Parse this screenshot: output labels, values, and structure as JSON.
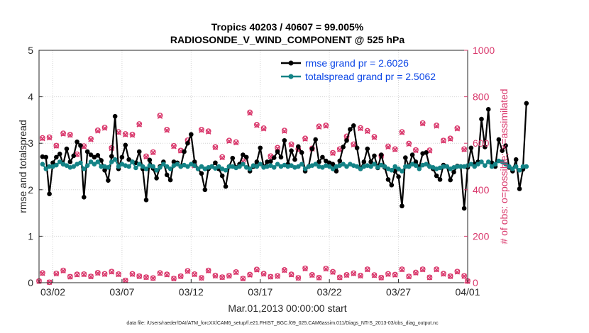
{
  "chart_data": {
    "type": "line",
    "title": "Tropics 40203 / 40607 = 99.005%",
    "subtitle": "RADIOSONDE_V_WIND_COMPONENT @ 525 hPa",
    "xlabel": "Mar.01,2013 00:00:00 start",
    "ylabel": "rmse and totalspread",
    "y2label": "# of obs: o=possible; ×=assimilated",
    "footer": "data file: /Users/raeder/DAI/ATM_forcXX/CAM6_setup/f.e21.FHIST_BGC.f09_025.CAM6assim.011/Diags_NTrS_2013-03/obs_diag_output.nc",
    "xlim": [
      0,
      31
    ],
    "ylim": [
      0,
      5
    ],
    "y2lim": [
      0,
      1000
    ],
    "xticks": [
      {
        "pos": 1,
        "label": "03/02"
      },
      {
        "pos": 6,
        "label": "03/07"
      },
      {
        "pos": 11,
        "label": "03/12"
      },
      {
        "pos": 16,
        "label": "03/17"
      },
      {
        "pos": 21,
        "label": "03/22"
      },
      {
        "pos": 26,
        "label": "03/27"
      },
      {
        "pos": 31,
        "label": "04/01"
      }
    ],
    "yticks": [
      {
        "value": 0,
        "label": "0"
      },
      {
        "value": 1,
        "label": "1"
      },
      {
        "value": 2,
        "label": "2"
      },
      {
        "value": 3,
        "label": "3"
      },
      {
        "value": 4,
        "label": "4"
      },
      {
        "value": 5,
        "label": "5"
      }
    ],
    "y2ticks": [
      {
        "value": 0,
        "label": "0"
      },
      {
        "value": 200,
        "label": "200"
      },
      {
        "value": 400,
        "label": "400"
      },
      {
        "value": 600,
        "label": "600"
      },
      {
        "value": 800,
        "label": "800"
      },
      {
        "value": 1000,
        "label": "1000"
      }
    ],
    "grid": true,
    "legend_position": "top-right",
    "series": [
      {
        "name": "rmse grand pr = 2.6026",
        "axis": "left",
        "color": "#000000",
        "x_start": 0.25,
        "x_step": 0.25,
        "values": [
          2.71,
          2.7,
          1.91,
          2.58,
          2.7,
          2.77,
          2.55,
          2.88,
          2.6,
          2.73,
          3.03,
          2.95,
          1.84,
          2.82,
          2.75,
          2.7,
          2.74,
          2.63,
          2.42,
          2.2,
          2.72,
          3.58,
          2.45,
          2.7,
          2.96,
          2.65,
          2.6,
          2.58,
          2.82,
          2.45,
          1.78,
          2.64,
          2.46,
          2.25,
          2.5,
          2.6,
          2.32,
          2.21,
          2.6,
          2.58,
          2.5,
          2.82,
          3.0,
          3.19,
          2.6,
          2.45,
          2.35,
          2.0,
          2.45,
          2.5,
          2.58,
          2.45,
          2.3,
          2.07,
          2.5,
          2.68,
          2.48,
          2.55,
          2.75,
          2.7,
          2.4,
          2.5,
          2.6,
          2.9,
          2.49,
          2.6,
          2.61,
          2.69,
          2.82,
          2.7,
          3.06,
          2.55,
          2.84,
          2.65,
          2.93,
          2.8,
          2.4,
          2.5,
          2.88,
          3.08,
          2.6,
          2.7,
          2.62,
          2.58,
          2.55,
          2.4,
          2.62,
          2.92,
          3.06,
          3.3,
          3.38,
          2.9,
          2.45,
          2.6,
          2.88,
          2.6,
          2.73,
          2.47,
          2.75,
          2.48,
          2.22,
          2.1,
          2.4,
          2.28,
          1.65,
          2.69,
          2.5,
          2.75,
          2.6,
          2.49,
          2.78,
          2.8,
          2.5,
          2.45,
          2.3,
          2.22,
          2.53,
          2.5,
          2.21,
          2.38,
          2.51,
          2.5,
          1.6,
          2.48,
          2.9,
          2.55,
          2.6,
          3.52,
          2.92,
          3.73,
          2.58,
          2.5,
          3.08,
          2.84,
          2.95,
          2.48,
          2.4,
          2.65,
          2.02,
          2.44,
          3.86
        ]
      },
      {
        "name": "totalspread grand pr = 2.5062",
        "axis": "left",
        "color": "#138386",
        "x_start": 0.25,
        "x_step": 0.25,
        "values": [
          2.55,
          2.45,
          2.5,
          2.5,
          2.53,
          2.6,
          2.55,
          2.52,
          2.48,
          2.5,
          2.55,
          2.58,
          2.45,
          2.52,
          2.6,
          2.55,
          2.6,
          2.5,
          2.5,
          2.48,
          2.6,
          2.65,
          2.5,
          2.55,
          2.52,
          2.5,
          2.6,
          2.47,
          2.55,
          2.5,
          2.45,
          2.52,
          2.5,
          2.42,
          2.48,
          2.55,
          2.5,
          2.45,
          2.52,
          2.55,
          2.5,
          2.53,
          2.5,
          2.55,
          2.52,
          2.45,
          2.5,
          2.45,
          2.48,
          2.5,
          2.46,
          2.5,
          2.45,
          2.42,
          2.5,
          2.5,
          2.47,
          2.5,
          2.55,
          2.48,
          2.45,
          2.52,
          2.5,
          2.55,
          2.48,
          2.5,
          2.52,
          2.48,
          2.55,
          2.5,
          2.53,
          2.5,
          2.52,
          2.48,
          2.5,
          2.55,
          2.45,
          2.5,
          2.52,
          2.55,
          2.5,
          2.48,
          2.52,
          2.5,
          2.45,
          2.5,
          2.52,
          2.55,
          2.5,
          2.55,
          2.52,
          2.5,
          2.45,
          2.5,
          2.52,
          2.5,
          2.55,
          2.48,
          2.53,
          2.5,
          2.45,
          2.42,
          2.5,
          2.45,
          2.4,
          2.5,
          2.5,
          2.55,
          2.52,
          2.45,
          2.53,
          2.55,
          2.5,
          2.48,
          2.45,
          2.47,
          2.5,
          2.5,
          2.45,
          2.48,
          2.5,
          2.5,
          2.5,
          2.52,
          2.55,
          2.5,
          2.55,
          2.6,
          2.52,
          2.6,
          2.5,
          2.55,
          2.62,
          2.6,
          2.55,
          2.5,
          2.45,
          2.5,
          2.42,
          2.5,
          2.5
        ]
      },
      {
        "name": "possible",
        "axis": "right",
        "color": "#d9376b",
        "marker": "o",
        "x": [
          0.25,
          0.75,
          1.25,
          1.75,
          2.25,
          2.75,
          3.25,
          3.75,
          4.25,
          4.75,
          5.25,
          5.75,
          6.25,
          6.75,
          7.25,
          7.75,
          8.25,
          8.75,
          9.25,
          9.75,
          10.25,
          10.75,
          11.25,
          11.75,
          12.25,
          12.75,
          13.25,
          13.75,
          14.25,
          14.75,
          15.25,
          15.75,
          16.25,
          16.75,
          17.25,
          17.75,
          18.25,
          18.75,
          19.25,
          19.75,
          20.25,
          20.75,
          21.25,
          21.75,
          22.25,
          22.75,
          23.25,
          23.75,
          24.25,
          24.75,
          25.25,
          25.75,
          26.25,
          26.75,
          27.25,
          27.75,
          28.25,
          28.75,
          29.25,
          29.75,
          30.25,
          30.75
        ],
        "values": [
          623,
          626,
          590,
          643,
          637,
          553,
          588,
          619,
          656,
          668,
          580,
          649,
          640,
          638,
          683,
          544,
          562,
          720,
          659,
          589,
          569,
          613,
          505,
          659,
          652,
          584,
          541,
          612,
          605,
          523,
          733,
          680,
          665,
          545,
          581,
          655,
          596,
          575,
          621,
          578,
          673,
          677,
          559,
          575,
          630,
          596,
          666,
          654,
          628,
          547,
          587,
          575,
          649,
          599,
          571,
          687,
          570,
          677,
          612,
          621,
          665,
          575
        ]
      },
      {
        "name": "assimilated",
        "axis": "right",
        "color": "#d9376b",
        "marker": "x",
        "x": [
          0.25,
          0.75,
          1.25,
          1.75,
          2.25,
          2.75,
          3.25,
          3.75,
          4.25,
          4.75,
          5.25,
          5.75,
          6.25,
          6.75,
          7.25,
          7.75,
          8.25,
          8.75,
          9.25,
          9.75,
          10.25,
          10.75,
          11.25,
          11.75,
          12.25,
          12.75,
          13.25,
          13.75,
          14.25,
          14.75,
          15.25,
          15.75,
          16.25,
          16.75,
          17.25,
          17.75,
          18.25,
          18.75,
          19.25,
          19.75,
          20.25,
          20.75,
          21.25,
          21.75,
          22.25,
          22.75,
          23.25,
          23.75,
          24.25,
          24.75,
          25.25,
          25.75,
          26.25,
          26.75,
          27.25,
          27.75,
          28.25,
          28.75,
          29.25,
          29.75,
          30.25,
          30.75
        ],
        "values": [
          620,
          623,
          588,
          640,
          635,
          551,
          585,
          616,
          653,
          665,
          578,
          646,
          637,
          635,
          680,
          542,
          560,
          716,
          656,
          586,
          567,
          610,
          503,
          656,
          649,
          582,
          538,
          609,
          602,
          521,
          730,
          677,
          662,
          543,
          578,
          652,
          593,
          572,
          618,
          575,
          670,
          674,
          557,
          573,
          627,
          593,
          663,
          651,
          625,
          545,
          584,
          573,
          646,
          596,
          569,
          684,
          567,
          674,
          610,
          618,
          662,
          573
        ]
      },
      {
        "name": "possible-daily",
        "axis": "right",
        "color": "#d9376b",
        "marker": "o",
        "x": [
          0,
          0.25,
          0.75,
          1.25,
          1.75,
          2.25,
          2.75,
          3.25,
          3.75,
          4.25,
          4.75,
          5.25,
          5.75,
          6.25,
          6.75,
          7.25,
          7.75,
          8.25,
          8.75,
          9.25,
          9.75,
          10.25,
          10.75,
          11.25,
          11.75,
          12.25,
          12.75,
          13.25,
          13.75,
          14.25,
          14.75,
          15.25,
          15.75,
          16.25,
          16.75,
          17.25,
          17.75,
          18.25,
          18.75,
          19.25,
          19.75,
          20.25,
          20.75,
          21.25,
          21.75,
          22.25,
          22.75,
          23.25,
          23.75,
          24.25,
          24.75,
          25.25,
          25.75,
          26.25,
          26.75,
          27.25,
          27.75,
          28.25,
          28.75,
          29.25,
          29.75,
          30.25,
          30.75,
          31
        ],
        "values": [
          7,
          42,
          2,
          40,
          53,
          26,
          36,
          37,
          27,
          43,
          38,
          48,
          37,
          10,
          38,
          28,
          24,
          20,
          42,
          36,
          18,
          28,
          51,
          37,
          21,
          53,
          31,
          24,
          30,
          46,
          18,
          35,
          57,
          39,
          26,
          29,
          55,
          36,
          21,
          62,
          34,
          22,
          61,
          47,
          23,
          34,
          41,
          31,
          58,
          33,
          22,
          38,
          35,
          58,
          27,
          44,
          58,
          23,
          58,
          39,
          28,
          48,
          29,
          7
        ]
      },
      {
        "name": "assimilated-daily",
        "axis": "right",
        "color": "#d9376b",
        "marker": "x",
        "x": [
          0,
          0.25,
          0.75,
          1.25,
          1.75,
          2.25,
          2.75,
          3.25,
          3.75,
          4.25,
          4.75,
          5.25,
          5.75,
          6.25,
          6.75,
          7.25,
          7.75,
          8.25,
          8.75,
          9.25,
          9.75,
          10.25,
          10.75,
          11.25,
          11.75,
          12.25,
          12.75,
          13.25,
          13.75,
          14.25,
          14.75,
          15.25,
          15.75,
          16.25,
          16.75,
          17.25,
          17.75,
          18.25,
          18.75,
          19.25,
          19.75,
          20.25,
          20.75,
          21.25,
          21.75,
          22.25,
          22.75,
          23.25,
          23.75,
          24.25,
          24.75,
          25.25,
          25.75,
          26.25,
          26.75,
          27.25,
          27.75,
          28.25,
          28.75,
          29.25,
          29.75,
          30.25,
          30.75,
          31
        ],
        "values": [
          6,
          40,
          2,
          38,
          51,
          25,
          34,
          35,
          26,
          41,
          36,
          46,
          35,
          9,
          36,
          27,
          23,
          19,
          40,
          34,
          17,
          27,
          49,
          35,
          20,
          51,
          29,
          23,
          29,
          44,
          17,
          33,
          55,
          37,
          25,
          28,
          53,
          34,
          20,
          60,
          32,
          21,
          59,
          45,
          22,
          32,
          39,
          29,
          56,
          31,
          21,
          36,
          33,
          56,
          26,
          42,
          56,
          22,
          56,
          37,
          27,
          46,
          28,
          6
        ]
      }
    ]
  }
}
